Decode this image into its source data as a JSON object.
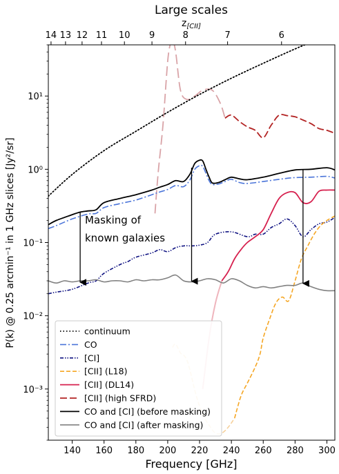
{
  "chart_data": {
    "type": "line",
    "title": "Large scales",
    "top_axis_label": "z[CII]",
    "xlabel": "Frequency [GHz]",
    "ylabel": "P(k) @ 0.25 arcmin⁻¹ in 1 GHz slices [Jy²/sr]",
    "xlim": [
      125,
      305
    ],
    "ylim": [
      0.0002,
      50
    ],
    "yscale": "log",
    "x_ticks": [
      140,
      160,
      180,
      200,
      220,
      240,
      260,
      280,
      300
    ],
    "y_ticks": [
      {
        "value": 0.001,
        "label": "10⁻³"
      },
      {
        "value": 0.01,
        "label": "10⁻²"
      },
      {
        "value": 0.1,
        "label": "10⁻¹"
      },
      {
        "value": 1,
        "label": "10⁰"
      },
      {
        "value": 10,
        "label": "10¹"
      }
    ],
    "top_ticks": [
      {
        "z": "14",
        "freq": 126.7
      },
      {
        "z": "13",
        "freq": 135.8
      },
      {
        "z": "12",
        "freq": 146.2
      },
      {
        "z": "11",
        "freq": 158.4
      },
      {
        "z": "10",
        "freq": 172.8
      },
      {
        "z": "9",
        "freq": 190.1
      },
      {
        "z": "8",
        "freq": 211.2
      },
      {
        "z": "7",
        "freq": 237.6
      },
      {
        "z": "6",
        "freq": 271.5
      }
    ],
    "annotation": {
      "lines": [
        "Masking of",
        "known galaxies"
      ]
    },
    "arrows": [
      {
        "x": 145,
        "from": 0.26,
        "to": 0.028
      },
      {
        "x": 215,
        "from": 1.05,
        "to": 0.029
      },
      {
        "x": 285,
        "from": 0.98,
        "to": 0.027
      }
    ],
    "legend_position": "lower-left",
    "series": [
      {
        "name": "continuum",
        "color": "#000000",
        "dash": "1.5,3",
        "width": 1.8,
        "x": [
          125,
          140,
          160,
          180,
          200,
          220,
          240,
          260,
          280,
          290
        ],
        "y": [
          0.43,
          0.85,
          1.8,
          3.3,
          6.0,
          10.5,
          17.5,
          28,
          44,
          54
        ]
      },
      {
        "name": "CO",
        "color": "#4a74d9",
        "dash": "9,3,2,3",
        "width": 1.6,
        "x": [
          125,
          130,
          140,
          150,
          155,
          160,
          170,
          180,
          190,
          195,
          200,
          205,
          210,
          214,
          217,
          220,
          222,
          224,
          226,
          228,
          232,
          236,
          240,
          245,
          250,
          260,
          270,
          280,
          290,
          300,
          305
        ],
        "y": [
          0.155,
          0.17,
          0.21,
          0.245,
          0.25,
          0.3,
          0.34,
          0.38,
          0.45,
          0.49,
          0.53,
          0.6,
          0.58,
          0.72,
          1.0,
          1.12,
          1.1,
          0.88,
          0.7,
          0.62,
          0.63,
          0.68,
          0.73,
          0.66,
          0.64,
          0.68,
          0.73,
          0.77,
          0.78,
          0.8,
          0.76
        ]
      },
      {
        "name": "[CI]",
        "color": "#0d1080",
        "dash": "5,2,1.5,2,1.5,2",
        "width": 1.6,
        "x": [
          125,
          130,
          140,
          150,
          155,
          160,
          170,
          175,
          180,
          190,
          195,
          200,
          205,
          210,
          215,
          220,
          225,
          230,
          240,
          250,
          255,
          260,
          265,
          270,
          275,
          280,
          285,
          290,
          295,
          300,
          305
        ],
        "y": [
          0.02,
          0.021,
          0.023,
          0.028,
          0.03,
          0.038,
          0.05,
          0.055,
          0.063,
          0.072,
          0.08,
          0.075,
          0.085,
          0.09,
          0.09,
          0.092,
          0.1,
          0.13,
          0.14,
          0.12,
          0.13,
          0.13,
          0.16,
          0.18,
          0.21,
          0.17,
          0.12,
          0.15,
          0.18,
          0.19,
          0.22
        ]
      },
      {
        "name": "[CII] (L18)",
        "color": "#f5a623",
        "dash": "6,3",
        "width": 1.6,
        "x": [
          242,
          246,
          250,
          255,
          258,
          260,
          264,
          268,
          272,
          276,
          280,
          284,
          288,
          292,
          296,
          300,
          305
        ],
        "y": [
          0.0004,
          0.0008,
          0.0012,
          0.002,
          0.003,
          0.005,
          0.009,
          0.015,
          0.018,
          0.016,
          0.03,
          0.06,
          0.09,
          0.13,
          0.17,
          0.2,
          0.23
        ]
      },
      {
        "name": "[CII] (DL14)",
        "color": "#d6204e",
        "dash": "",
        "width": 1.8,
        "x": [
          234,
          238,
          242,
          246,
          250,
          255,
          260,
          265,
          270,
          275,
          280,
          285,
          290,
          295,
          300,
          305
        ],
        "y": [
          0.03,
          0.04,
          0.06,
          0.08,
          0.1,
          0.12,
          0.15,
          0.25,
          0.4,
          0.48,
          0.48,
          0.35,
          0.36,
          0.5,
          0.52,
          0.52
        ]
      },
      {
        "name": "[CII] (high SFRD)",
        "color": "#b22222",
        "dash": "10,4",
        "width": 1.8,
        "x": [
          236,
          240,
          245,
          250,
          255,
          260,
          265,
          270,
          275,
          280,
          285,
          290,
          295,
          300,
          305
        ],
        "y": [
          5.0,
          5.5,
          4.5,
          3.8,
          3.4,
          2.7,
          4.0,
          5.5,
          5.4,
          5.2,
          4.7,
          4.2,
          3.6,
          3.4,
          3.1
        ]
      },
      {
        "name": "CO and [CI] (before masking)",
        "color": "#000000",
        "dash": "",
        "width": 1.8,
        "x": [
          125,
          130,
          140,
          145,
          150,
          155,
          160,
          170,
          180,
          190,
          195,
          200,
          205,
          210,
          214,
          217,
          220,
          222,
          224,
          226,
          228,
          232,
          236,
          240,
          245,
          250,
          260,
          270,
          280,
          290,
          300,
          305
        ],
        "y": [
          0.175,
          0.2,
          0.24,
          0.26,
          0.27,
          0.28,
          0.35,
          0.4,
          0.45,
          0.52,
          0.57,
          0.62,
          0.7,
          0.68,
          0.86,
          1.2,
          1.33,
          1.3,
          1.0,
          0.78,
          0.65,
          0.66,
          0.72,
          0.78,
          0.74,
          0.72,
          0.78,
          0.88,
          0.98,
          1.0,
          1.05,
          0.98
        ]
      },
      {
        "name": "CO and [CI] (after masking)",
        "color": "#808080",
        "dash": "",
        "width": 1.6,
        "x": [
          125,
          130,
          135,
          140,
          145,
          150,
          155,
          160,
          165,
          170,
          175,
          180,
          185,
          190,
          195,
          200,
          205,
          210,
          215,
          220,
          225,
          230,
          235,
          240,
          245,
          250,
          255,
          260,
          265,
          270,
          275,
          280,
          285,
          290,
          295,
          300,
          305
        ],
        "y": [
          0.03,
          0.028,
          0.03,
          0.029,
          0.03,
          0.03,
          0.031,
          0.029,
          0.03,
          0.03,
          0.029,
          0.031,
          0.03,
          0.031,
          0.031,
          0.033,
          0.036,
          0.03,
          0.029,
          0.03,
          0.032,
          0.031,
          0.028,
          0.032,
          0.03,
          0.026,
          0.024,
          0.025,
          0.024,
          0.025,
          0.026,
          0.026,
          0.028,
          0.025,
          0.023,
          0.022,
          0.022
        ]
      }
    ],
    "faded_series": [
      {
        "of": "[CII] (high SFRD)",
        "color": "#d9a3a7",
        "dash": "14,6",
        "width": 1.8,
        "x": [
          192,
          194,
          197,
          200,
          202,
          203,
          205,
          208,
          212,
          217,
          222,
          228,
          233,
          236
        ],
        "y": [
          0.25,
          0.9,
          4,
          30,
          55,
          60,
          40,
          12,
          9,
          10,
          12,
          12,
          8,
          5
        ]
      },
      {
        "of": "[CII] (DL14)",
        "color": "#efb5bd",
        "dash": "",
        "width": 2.0,
        "x": [
          222,
          226,
          230,
          234
        ],
        "y": [
          0.001,
          0.005,
          0.015,
          0.03
        ]
      },
      {
        "of": "[CII] (L18)",
        "color": "#f6d09a",
        "dash": "6,3",
        "width": 1.6,
        "x": [
          203,
          205,
          208,
          210,
          212,
          214,
          218,
          222,
          226,
          230,
          234,
          238,
          242
        ],
        "y": [
          0.0037,
          0.0041,
          0.0031,
          0.0029,
          0.0025,
          0.0018,
          0.0008,
          0.00045,
          0.00032,
          0.00025,
          0.00025,
          0.0003,
          0.0004
        ]
      }
    ]
  }
}
